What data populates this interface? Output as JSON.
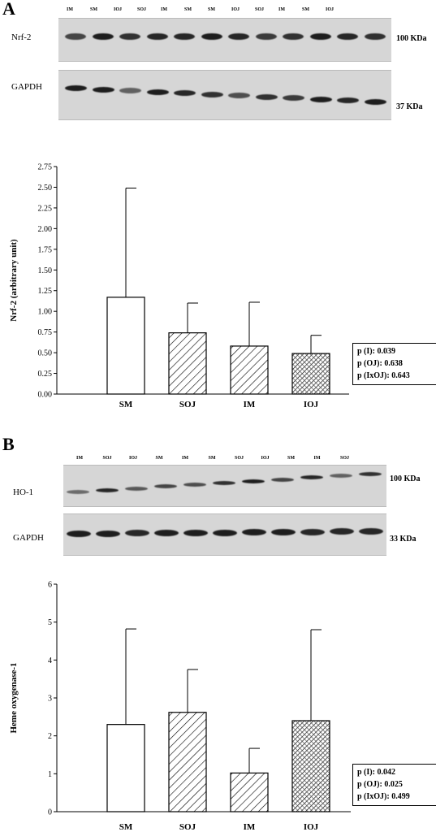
{
  "panels": {
    "a": {
      "letter": "A",
      "blot_top": {
        "protein": "Nrf-2",
        "kda": "100 KDa",
        "lanes": [
          "IM",
          "SM",
          "IOJ",
          "SOJ",
          "IM",
          "SM",
          "SM",
          "IOJ",
          "SOJ",
          "IM",
          "SM",
          "IOJ"
        ]
      },
      "blot_bottom": {
        "protein": "GAPDH",
        "kda": "37 KDa"
      },
      "stats": [
        "p (I): 0.039",
        "p (OJ): 0.638",
        "p (IxOJ): 0.643"
      ]
    },
    "b": {
      "letter": "B",
      "blot_top": {
        "protein": "HO-1",
        "kda": "100 KDa",
        "lanes": [
          "IM",
          "SOJ",
          "IOJ",
          "SM",
          "IM",
          "SM",
          "SOJ",
          "IOJ",
          "SM",
          "IM",
          "SOJ"
        ]
      },
      "blot_bottom": {
        "protein": "GAPDH",
        "kda": "33 KDa"
      },
      "stats": [
        "p (I): 0.042",
        "p (OJ): 0.025",
        "p (IxOJ): 0.499"
      ]
    }
  },
  "chart_data": [
    {
      "type": "bar",
      "categories": [
        "SM",
        "SOJ",
        "IM",
        "IOJ"
      ],
      "values": [
        1.17,
        0.74,
        0.58,
        0.49
      ],
      "error_upper": [
        2.49,
        1.1,
        1.11,
        0.71
      ],
      "ylabel": "Nrf-2 (arbitrary unit)",
      "ylim": [
        0,
        2.75
      ],
      "yticks": [
        "0.00",
        "0.25",
        "0.50",
        "0.75",
        "1.00",
        "1.25",
        "1.50",
        "1.75",
        "2.00",
        "2.25",
        "2.50",
        "2.75"
      ],
      "patterns": [
        "none",
        "hatch",
        "hatch",
        "crosshatch"
      ]
    },
    {
      "type": "bar",
      "categories": [
        "SM",
        "SOJ",
        "IM",
        "IOJ"
      ],
      "values": [
        2.3,
        2.62,
        1.02,
        2.4
      ],
      "error_upper": [
        4.82,
        3.75,
        1.67,
        4.8
      ],
      "ylabel": "Heme oxygenase-1",
      "ylim": [
        0,
        6
      ],
      "yticks": [
        "0",
        "1",
        "2",
        "3",
        "4",
        "5",
        "6"
      ],
      "patterns": [
        "none",
        "hatch",
        "hatch",
        "crosshatch"
      ]
    }
  ]
}
